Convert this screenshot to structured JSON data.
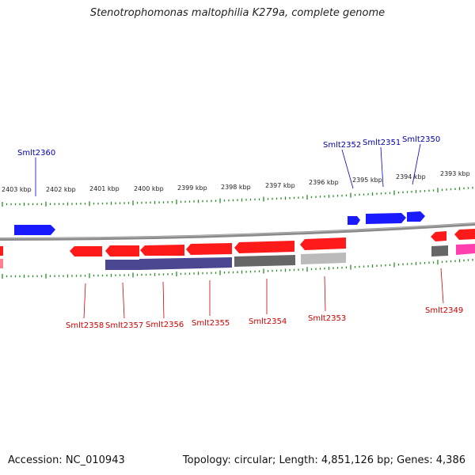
{
  "title": "Stenotrophomonas maltophilia K279a, complete genome",
  "footer": {
    "accession": "Accession: NC_010943",
    "summary": "Topology: circular; Length: 4,851,126 bp; Genes: 4,386"
  },
  "colors": {
    "forward_gene": "#1a1aff",
    "reverse_gene": "#ff1a1a",
    "forward_label": "#0000aa",
    "reverse_label": "#cc0000",
    "tick": "#2a8a2a",
    "backbone": "#888888",
    "cds_dark": "#4b4690",
    "cds_grey": "#666666",
    "cds_light": "#bbbbbb",
    "cds_pink": "#ff3fb0"
  },
  "ticks": [
    {
      "label": "2403 kbp"
    },
    {
      "label": "2402 kbp"
    },
    {
      "label": "2401 kbp"
    },
    {
      "label": "2400 kbp"
    },
    {
      "label": "2399 kbp"
    },
    {
      "label": "2398 kbp"
    },
    {
      "label": "2397 kbp"
    },
    {
      "label": "2396 kbp"
    },
    {
      "label": "2395 kbp"
    },
    {
      "label": "2394 kbp"
    },
    {
      "label": "2393 kbp"
    }
  ],
  "forward_labels": [
    "Smlt2360",
    "Smlt2352",
    "Smlt2351",
    "Smlt2350"
  ],
  "reverse_labels": [
    "Smlt2358",
    "Smlt2357",
    "Smlt2356",
    "Smlt2355",
    "Smlt2354",
    "Smlt2353",
    "Smlt2349"
  ]
}
